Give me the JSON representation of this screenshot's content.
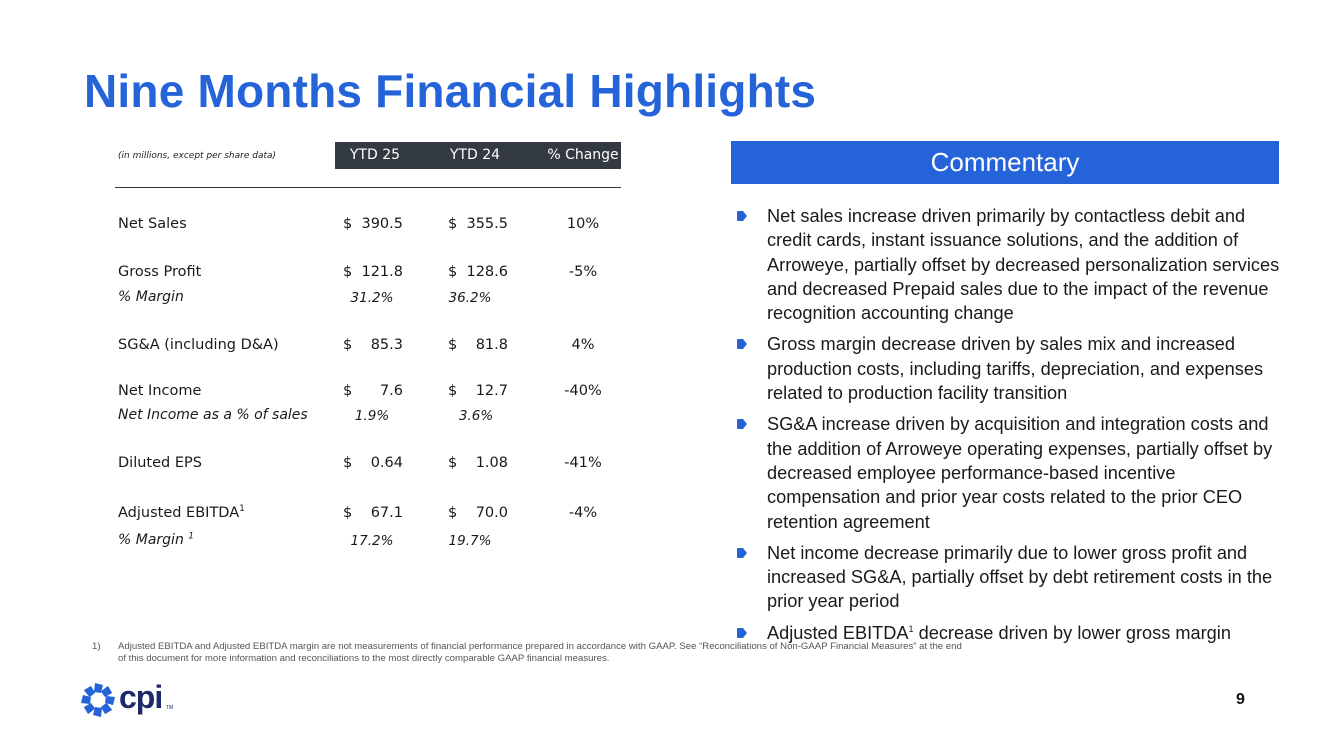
{
  "title": "Nine Months Financial Highlights",
  "table": {
    "units_note": "(in millions, except per share data)",
    "headers": [
      "YTD 25",
      "YTD 24",
      "% Change"
    ],
    "currency": "$",
    "rows": {
      "net_sales": {
        "label": "Net Sales",
        "ytd25": "390.5",
        "ytd24": "355.5",
        "change": "10%"
      },
      "gross_profit": {
        "label": "Gross Profit",
        "ytd25": "121.8",
        "ytd24": "128.6",
        "change": "-5%"
      },
      "gross_margin": {
        "label": "% Margin",
        "ytd25": "31.2%",
        "ytd24": "36.2%"
      },
      "sga": {
        "label": "SG&A (including D&A)",
        "ytd25": "85.3",
        "ytd24": "81.8",
        "change": "4%"
      },
      "net_income": {
        "label": "Net Income",
        "ytd25": "7.6",
        "ytd24": "12.7",
        "change": "-40%"
      },
      "ni_pct": {
        "label": "Net Income as a % of sales",
        "ytd25": "1.9%",
        "ytd24": "3.6%"
      },
      "eps": {
        "label": "Diluted EPS",
        "ytd25": "0.64",
        "ytd24": "1.08",
        "change": "-41%"
      },
      "ebitda": {
        "label": "Adjusted EBITDA",
        "sup": "1",
        "ytd25": "67.1",
        "ytd24": "70.0",
        "change": "-4%"
      },
      "ebitda_margin": {
        "label": "% Margin",
        "sup": "1",
        "ytd25": "17.2%",
        "ytd24": "19.7%"
      }
    }
  },
  "commentary": {
    "heading": "Commentary",
    "bullets": [
      "Net sales increase driven primarily by contactless debit and credit cards, instant issuance solutions, and the addition of Arroweye, partially offset by decreased personalization services and decreased Prepaid sales due to the impact of the revenue recognition accounting change",
      "Gross margin decrease driven by sales mix and increased production costs, including tariffs, depreciation, and expenses related to production facility transition",
      "SG&A increase driven by acquisition and integration costs and the addition of Arroweye operating expenses, partially offset by decreased employee performance-based incentive compensation and prior year costs related to the prior CEO retention agreement",
      "Net income decrease primarily due to lower gross profit and increased SG&A, partially offset by debt retirement costs in the prior year period"
    ],
    "last_bullet": {
      "pre": "Adjusted EBITDA",
      "sup": "1",
      "post": " decrease driven by lower gross margin"
    },
    "bullet_color": "#2563d8"
  },
  "footnote": {
    "number": "1)",
    "text": "Adjusted EBITDA and Adjusted EBITDA margin are not measurements of financial performance prepared in accordance with GAAP. See “Reconciliations of Non-GAAP Financial Measures” at the end of this document for more information and reconciliations to the most directly comparable GAAP financial measures."
  },
  "logo": {
    "text": "cpi",
    "tm": "TM",
    "icon": "cpi-pinwheel-logo-icon"
  },
  "page_number": "9"
}
